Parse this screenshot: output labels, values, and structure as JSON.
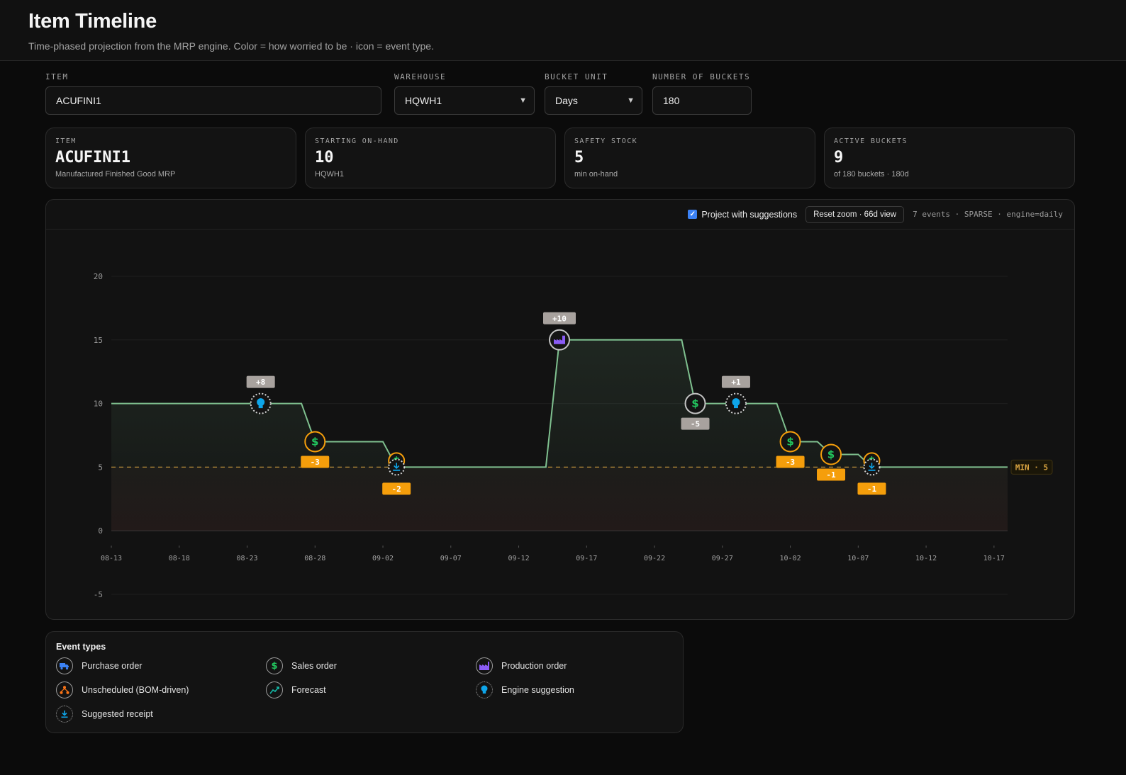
{
  "header": {
    "title": "Item Timeline",
    "subtitle": "Time-phased projection from the MRP engine. Color = how worried to be · icon = event type."
  },
  "filters": {
    "item_label": "ITEM",
    "item_value": "ACUFINI1",
    "warehouse_label": "WAREHOUSE",
    "warehouse_value": "HQWH1",
    "bucket_unit_label": "BUCKET UNIT",
    "bucket_unit_value": "Days",
    "buckets_label": "NUMBER OF BUCKETS",
    "buckets_value": "180"
  },
  "cards": [
    {
      "label": "ITEM",
      "value": "ACUFINI1",
      "sub": "Manufactured Finished Good MRP"
    },
    {
      "label": "STARTING ON-HAND",
      "value": "10",
      "sub": "HQWH1"
    },
    {
      "label": "SAFETY STOCK",
      "value": "5",
      "sub": "min on-hand"
    },
    {
      "label": "ACTIVE BUCKETS",
      "value": "9",
      "sub": "of 180 buckets · 180d"
    }
  ],
  "toolbar": {
    "checkbox_label": "Project with suggestions",
    "checkbox_checked": true,
    "reset_label": "Reset zoom · 66d view",
    "status": "7 events · SPARSE · engine=daily"
  },
  "colors": {
    "line": "#7fc08f",
    "min_line": "#d9a441",
    "warning": "#f59e0b",
    "neutral_badge": "#a8a29e",
    "sales": "#22c55e",
    "production": "#8b5cf6",
    "suggestion": "#0ea5e9",
    "purchase": "#3b82f6",
    "unscheduled": "#f97316",
    "forecast": "#14b8a6"
  },
  "chart_data": {
    "type": "line",
    "step": true,
    "x_start": "08-13",
    "x_end": "10-18",
    "x_ticks": [
      "08-13",
      "08-18",
      "08-23",
      "08-28",
      "09-02",
      "09-07",
      "09-12",
      "09-17",
      "09-22",
      "09-27",
      "10-02",
      "10-07",
      "10-12",
      "10-17"
    ],
    "y_ticks": [
      20,
      15,
      10,
      5,
      0,
      -5
    ],
    "ylim": [
      -5,
      20
    ],
    "series": [
      {
        "x": [
          "08-13",
          "08-27",
          "08-28",
          "09-02",
          "09-03",
          "09-14",
          "09-15",
          "09-24",
          "09-25",
          "09-28",
          "10-01",
          "10-02",
          "10-04",
          "10-05",
          "10-07",
          "10-08",
          "10-18"
        ],
        "y": [
          10,
          10,
          7,
          7,
          5,
          5,
          15,
          15,
          10,
          10,
          10,
          7,
          7,
          6,
          6,
          5,
          5
        ]
      }
    ],
    "min_line": {
      "value": 5,
      "label": "MIN · 5"
    },
    "events": [
      {
        "date": "08-24",
        "y": 10,
        "icon": "lightbulb-icon",
        "kind": "suggestion",
        "qty": "+8",
        "badge": "neutral",
        "badge_pos": "above"
      },
      {
        "date": "08-28",
        "y": 7,
        "icon": "dollar-icon",
        "kind": "sales",
        "qty": "-3",
        "badge": "warning",
        "badge_pos": "below"
      },
      {
        "date": "09-03",
        "y": 5.5,
        "icon": "dollar-icon",
        "kind": "sales",
        "qty": "-2",
        "badge": "warning",
        "badge_pos": "below"
      },
      {
        "date": "09-03",
        "y": 5,
        "icon": "download-icon",
        "kind": "receipt",
        "qty": "",
        "badge": "",
        "badge_pos": ""
      },
      {
        "date": "09-15",
        "y": 15,
        "icon": "factory-icon",
        "kind": "production",
        "qty": "+10",
        "badge": "neutral",
        "badge_pos": "above"
      },
      {
        "date": "09-25",
        "y": 10,
        "icon": "dollar-icon",
        "kind": "sales-neutral",
        "qty": "-5",
        "badge": "neutral",
        "badge_pos": "below"
      },
      {
        "date": "09-28",
        "y": 10,
        "icon": "lightbulb-icon",
        "kind": "suggestion",
        "qty": "+1",
        "badge": "neutral",
        "badge_pos": "above"
      },
      {
        "date": "10-02",
        "y": 7,
        "icon": "dollar-icon",
        "kind": "sales",
        "qty": "-3",
        "badge": "warning",
        "badge_pos": "below"
      },
      {
        "date": "10-05",
        "y": 6,
        "icon": "dollar-icon",
        "kind": "sales",
        "qty": "-1",
        "badge": "warning",
        "badge_pos": "below"
      },
      {
        "date": "10-08",
        "y": 5.5,
        "icon": "dollar-icon",
        "kind": "sales",
        "qty": "-1",
        "badge": "warning",
        "badge_pos": "below"
      },
      {
        "date": "10-08",
        "y": 5,
        "icon": "download-icon",
        "kind": "receipt",
        "qty": "",
        "badge": "",
        "badge_pos": ""
      }
    ]
  },
  "legend": {
    "title": "Event types",
    "items": [
      {
        "label": "Purchase order",
        "icon": "truck-icon"
      },
      {
        "label": "Sales order",
        "icon": "dollar-icon"
      },
      {
        "label": "Production order",
        "icon": "factory-icon"
      },
      {
        "label": "Unscheduled (BOM-driven)",
        "icon": "hierarchy-icon"
      },
      {
        "label": "Forecast",
        "icon": "trend-up-icon"
      },
      {
        "label": "Engine suggestion",
        "icon": "lightbulb-icon"
      },
      {
        "label": "Suggested receipt",
        "icon": "download-icon"
      }
    ]
  }
}
